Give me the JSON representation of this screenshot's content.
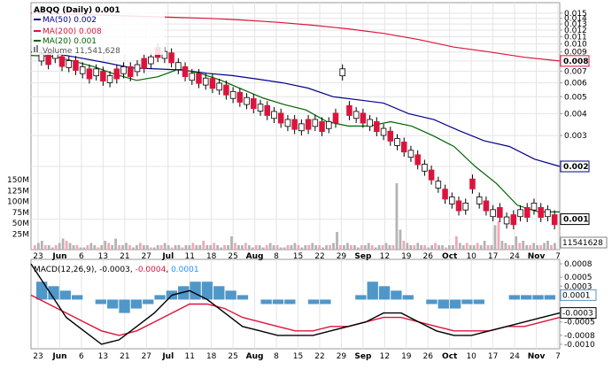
{
  "chart_data": {
    "type": "line",
    "title": "ABQQ (Daily) 0.001",
    "symbol": "ABQQ",
    "interval": "Daily",
    "last_price": "0.001",
    "legend": [
      {
        "name": "MA(50)",
        "value": "0.002",
        "color": "#00008b"
      },
      {
        "name": "MA(200)",
        "value": "0.008",
        "color": "#dc143c"
      },
      {
        "name": "MA(20)",
        "value": "0.001",
        "color": "#006400"
      },
      {
        "name": "Volume",
        "value": "11,541,628",
        "color": "#808080"
      }
    ],
    "x_labels": [
      "23",
      "Jun",
      "6",
      "13",
      "21",
      "27",
      "Jul",
      "11",
      "18",
      "25",
      "Aug",
      "8",
      "15",
      "22",
      "29",
      "Sep",
      "12",
      "19",
      "26",
      "Oct",
      "10",
      "17",
      "24",
      "Nov",
      "7"
    ],
    "price_axis": {
      "scale": "log",
      "ticks": [
        "0.015",
        "0.014",
        "0.013",
        "0.012",
        "0.011",
        "0.010",
        "0.009",
        "0.008",
        "0.007",
        "0.006",
        "0.005",
        "0.004",
        "0.003",
        "0.002",
        "0.001"
      ],
      "badges": [
        {
          "label": "0.008",
          "color": "#dc143c"
        },
        {
          "label": "0.002",
          "color": "#00008b"
        },
        {
          "label": "0.001",
          "color": "#000000"
        }
      ]
    },
    "volume_axis": {
      "ticks": [
        "150M",
        "125M",
        "100M",
        "75M",
        "50M",
        "25M"
      ],
      "badge": "11541628"
    },
    "series": [
      {
        "name": "MA(200)",
        "values": [
          0.015,
          0.0148,
          0.0146,
          0.0144,
          0.0142,
          0.014,
          0.0137,
          0.0133,
          0.0128,
          0.0122,
          0.0115,
          0.0106,
          0.0096,
          0.009,
          0.0084,
          0.008
        ]
      },
      {
        "name": "MA(50)",
        "values": [
          0.009,
          0.0088,
          0.0083,
          0.0078,
          0.0073,
          0.0072,
          0.0071,
          0.0068,
          0.0066,
          0.0063,
          0.006,
          0.0056,
          0.005,
          0.0048,
          0.0046,
          0.004,
          0.0037,
          0.0032,
          0.0028,
          0.0026,
          0.0022,
          0.002
        ]
      },
      {
        "name": "MA(20)",
        "values": [
          0.0086,
          0.0085,
          0.008,
          0.0074,
          0.0067,
          0.0062,
          0.0065,
          0.0072,
          0.0068,
          0.0062,
          0.0055,
          0.0049,
          0.0045,
          0.0042,
          0.0036,
          0.0034,
          0.0034,
          0.0036,
          0.0034,
          0.003,
          0.0026,
          0.002,
          0.0016,
          0.0012,
          0.0011,
          0.0011
        ]
      }
    ],
    "macd": {
      "label": "MACD(12,26,9)",
      "macd": "-0.0003",
      "signal": "-0.0004",
      "histogram": "0.0001",
      "ticks": [
        "0.0008",
        "0.0005",
        "0.0003",
        "0.0001",
        "-0.0003",
        "-0.0005",
        "-0.0008",
        "-0.0010"
      ],
      "badges": [
        "0.0001",
        "-0.0003"
      ]
    }
  }
}
